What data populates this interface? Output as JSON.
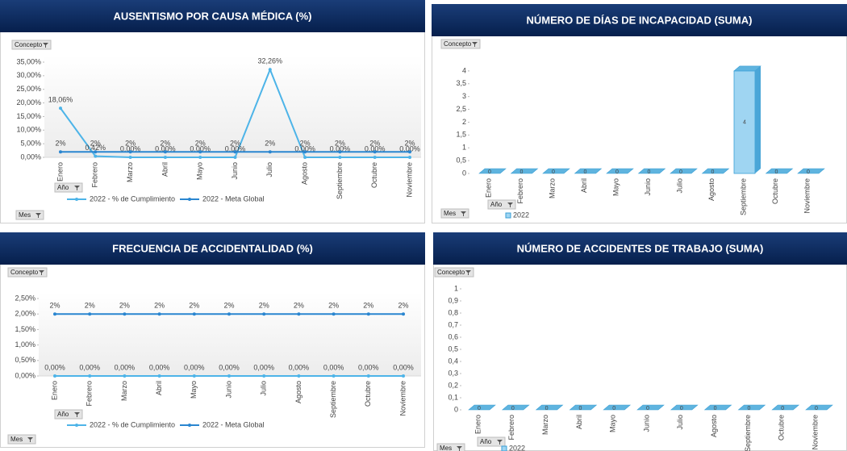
{
  "chart_data": [
    {
      "type": "line",
      "title": "AUSENTISMO POR CAUSA MÉDICA (%)",
      "filter_buttons": [
        "Concepto",
        "Año",
        "Mes"
      ],
      "categories": [
        "Enero",
        "Febrero",
        "Marzo",
        "Abril",
        "Mayo",
        "Junio",
        "Julio",
        "Agosto",
        "Septiembre",
        "Octubre",
        "Noviembre"
      ],
      "series": [
        {
          "name": "2022 - % de Cumplimiento",
          "color": "#4db4e8",
          "values": [
            18.06,
            0.42,
            0,
            0,
            0,
            0,
            32.26,
            0,
            0,
            0,
            0
          ],
          "value_labels": [
            "18,06%",
            "0,42%",
            "0,00%",
            "0,00%",
            "0,00%",
            "0,00%",
            "32,26%",
            "0,00%",
            "0,00%",
            "0,00%",
            "0,00%"
          ]
        },
        {
          "name": "2022 - Meta Global",
          "color": "#2a86d0",
          "values": [
            2,
            2,
            2,
            2,
            2,
            2,
            2,
            2,
            2,
            2,
            2
          ],
          "value_labels": [
            "2%",
            "2%",
            "2%",
            "2%",
            "2%",
            "2%",
            "2%",
            "2%",
            "2%",
            "2%",
            "2%"
          ]
        }
      ],
      "ylim": [
        0,
        35
      ],
      "yticks": [
        {
          "value": 0,
          "label": "0,00%"
        },
        {
          "value": 5,
          "label": "5,00%"
        },
        {
          "value": 10,
          "label": "10,00%"
        },
        {
          "value": 15,
          "label": "15,00%"
        },
        {
          "value": 20,
          "label": "20,00%"
        },
        {
          "value": 25,
          "label": "25,00%"
        },
        {
          "value": 30,
          "label": "30,00%"
        },
        {
          "value": 35,
          "label": "35,00%"
        }
      ]
    },
    {
      "type": "bar",
      "title": "NÚMERO DE DÍAS DE INCAPACIDAD (SUMA)",
      "filter_buttons": [
        "Concepto",
        "Año",
        "Mes"
      ],
      "categories": [
        "Enero",
        "Febrero",
        "Marzo",
        "Abril",
        "Mayo",
        "Junio",
        "Julio",
        "Agosto",
        "Septiembre",
        "Octubre",
        "Noviembre"
      ],
      "series": [
        {
          "name": "2022",
          "color": "#9fd5f2",
          "values": [
            0,
            0,
            0,
            0,
            0,
            0,
            0,
            0,
            4,
            0,
            0
          ]
        }
      ],
      "ylim": [
        0,
        4.5
      ],
      "yticks": [
        0,
        {
          "value": 0.5,
          "label": "0,5"
        },
        1,
        {
          "value": 1.5,
          "label": "1,5"
        },
        2,
        {
          "value": 2.5,
          "label": "2,5"
        },
        3,
        {
          "value": 3.5,
          "label": "3,5"
        },
        4
      ]
    },
    {
      "type": "line",
      "title": "FRECUENCIA DE ACCIDENTALIDAD (%)",
      "filter_buttons": [
        "Concepto",
        "Año",
        "Mes"
      ],
      "categories": [
        "Enero",
        "Febrero",
        "Marzo",
        "Abril",
        "Mayo",
        "Junio",
        "Julio",
        "Agosto",
        "Septiembre",
        "Octubre",
        "Noviembre"
      ],
      "series": [
        {
          "name": "2022 - % de Cumplimiento",
          "color": "#4db4e8",
          "values": [
            0,
            0,
            0,
            0,
            0,
            0,
            0,
            0,
            0,
            0,
            0
          ],
          "value_labels": [
            "0,00%",
            "0,00%",
            "0,00%",
            "0,00%",
            "0,00%",
            "0,00%",
            "0,00%",
            "0,00%",
            "0,00%",
            "0,00%",
            "0,00%"
          ]
        },
        {
          "name": "2022 - Meta Global",
          "color": "#2a86d0",
          "values": [
            2,
            2,
            2,
            2,
            2,
            2,
            2,
            2,
            2,
            2,
            2
          ],
          "value_labels": [
            "2%",
            "2%",
            "2%",
            "2%",
            "2%",
            "2%",
            "2%",
            "2%",
            "2%",
            "2%",
            "2%"
          ]
        }
      ],
      "ylim": [
        0,
        2.5
      ],
      "yticks": [
        {
          "value": 0,
          "label": "0,00%"
        },
        {
          "value": 0.5,
          "label": "0,50%"
        },
        {
          "value": 1,
          "label": "1,00%"
        },
        {
          "value": 1.5,
          "label": "1,50%"
        },
        {
          "value": 2,
          "label": "2,00%"
        },
        {
          "value": 2.5,
          "label": "2,50%"
        }
      ]
    },
    {
      "type": "bar",
      "title": "NÚMERO DE ACCIDENTES DE TRABAJO  (SUMA)",
      "filter_buttons": [
        "Concepto",
        "Año",
        "Mes"
      ],
      "categories": [
        "Enero",
        "Febrero",
        "Marzo",
        "Abril",
        "Mayo",
        "Junio",
        "Julio",
        "Agosto",
        "Septiembre",
        "Octubre",
        "Noviembre"
      ],
      "series": [
        {
          "name": "2022",
          "color": "#9fd5f2",
          "values": [
            0,
            0,
            0,
            0,
            0,
            0,
            0,
            0,
            0,
            0,
            0
          ]
        }
      ],
      "ylim": [
        0,
        1
      ],
      "yticks": [
        0,
        {
          "value": 0.1,
          "label": "0,1"
        },
        {
          "value": 0.2,
          "label": "0,2"
        },
        {
          "value": 0.3,
          "label": "0,3"
        },
        {
          "value": 0.4,
          "label": "0,4"
        },
        {
          "value": 0.5,
          "label": "0,5"
        },
        {
          "value": 0.6,
          "label": "0,6"
        },
        {
          "value": 0.7,
          "label": "0,7"
        },
        {
          "value": 0.8,
          "label": "0,8"
        },
        {
          "value": 0.9,
          "label": "0,9"
        },
        1
      ]
    }
  ]
}
